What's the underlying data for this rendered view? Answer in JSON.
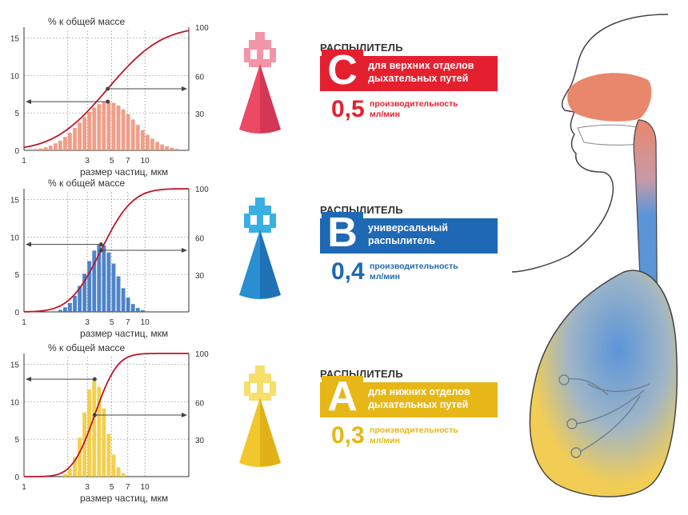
{
  "colors": {
    "nebulizer_c": "#e4202f",
    "nebulizer_b": "#1f68b5",
    "nebulizer_a": "#e6b716",
    "cumulative_curve": "#c0152a",
    "nose_region": "#e9876d",
    "airway_region": "#5b95d8",
    "lung_region": "#f2cd55"
  },
  "nebulizers": [
    {
      "key": "c",
      "icon": "nebulizer-red-icon",
      "title": "РАСПЫЛИТЕЛЬ",
      "letter": "C",
      "description": "для верхних отделов\nдыхательных путей",
      "rate": "0,5",
      "rate_label": "производительность",
      "unit": "мл/мин"
    },
    {
      "key": "b",
      "icon": "nebulizer-blue-icon",
      "title": "РАСПЫЛИТЕЛЬ",
      "letter": "B",
      "description": "универсальный\nраспылитель",
      "rate": "0,4",
      "rate_label": "производительность",
      "unit": "мл/мин"
    },
    {
      "key": "a",
      "icon": "nebulizer-yellow-icon",
      "title": "РАСПЫЛИТЕЛЬ",
      "letter": "A",
      "description": "для нижних отделов\nдыхательных путей",
      "rate": "0,3",
      "rate_label": "производительность",
      "unit": "мл/мин"
    }
  ],
  "chart_data": [
    {
      "type": "bar",
      "title": "% к общей массе",
      "xlabel": "размер частиц, мкм",
      "x_scale": "log",
      "x_ticks": [
        "1",
        "3",
        "5",
        "7",
        "10"
      ],
      "y_ticks_left": [
        "0",
        "5",
        "10",
        "15"
      ],
      "y_ticks_right": [
        "30",
        "60",
        "100"
      ],
      "ylim": [
        0,
        16
      ],
      "grid": true,
      "color": "#ef8d73",
      "distribution_peak_percent": 6.5,
      "distribution_peak_size_um": 4.6,
      "cumulative_curve": true
    },
    {
      "type": "bar",
      "title": "% к общей массе",
      "xlabel": "размер частиц, мкм",
      "x_scale": "log",
      "x_ticks": [
        "1",
        "3",
        "5",
        "7",
        "10"
      ],
      "y_ticks_left": [
        "0",
        "5",
        "10",
        "15"
      ],
      "y_ticks_right": [
        "30",
        "60",
        "100"
      ],
      "ylim": [
        0,
        16
      ],
      "grid": true,
      "color": "#2f6fbf",
      "distribution_peak_percent": 9,
      "distribution_peak_size_um": 4,
      "cumulative_curve": true
    },
    {
      "type": "bar",
      "title": "% к общей массе",
      "xlabel": "размер частиц, мкм",
      "x_scale": "log",
      "x_ticks": [
        "1",
        "3",
        "5",
        "7",
        "10"
      ],
      "y_ticks_left": [
        "0",
        "5",
        "10",
        "15"
      ],
      "y_ticks_right": [
        "30",
        "60",
        "100"
      ],
      "ylim": [
        0,
        16
      ],
      "grid": true,
      "color": "#f2c72e",
      "distribution_peak_percent": 13,
      "distribution_peak_size_um": 3.5,
      "cumulative_curve": true
    }
  ]
}
